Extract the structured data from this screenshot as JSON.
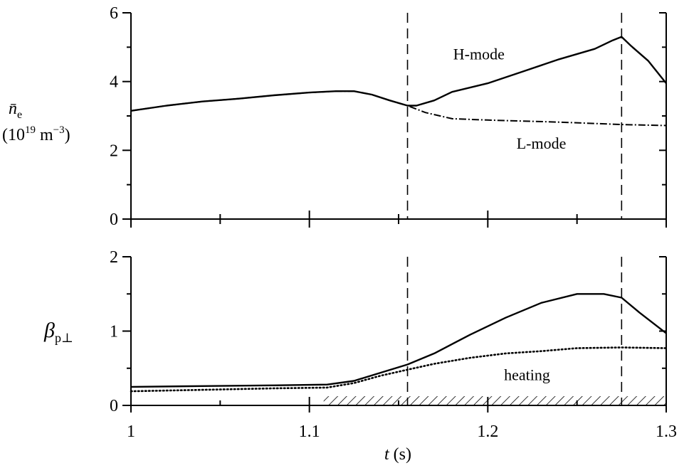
{
  "chart_data": [
    {
      "type": "line",
      "panel": "top",
      "ylabel_main": "n̄",
      "ylabel_sub": "e",
      "ylabel_unit_pre": "(10",
      "ylabel_unit_exp1": "19",
      "ylabel_unit_mid": " m",
      "ylabel_unit_exp2": "−3",
      "ylabel_unit_post": ")",
      "xlim": [
        1.0,
        1.3
      ],
      "ylim": [
        0,
        6
      ],
      "yticks": [
        "0",
        "2",
        "4",
        "6"
      ],
      "vlines": [
        1.155,
        1.275
      ],
      "annotations": [
        {
          "text": "H-mode",
          "x": 1.195,
          "y": 4.65
        },
        {
          "text": "L-mode",
          "x": 1.23,
          "y": 2.05
        }
      ],
      "series": [
        {
          "style": "solid",
          "x": [
            1.0,
            1.02,
            1.04,
            1.06,
            1.08,
            1.1,
            1.115,
            1.125,
            1.135,
            1.145,
            1.155,
            1.16,
            1.17,
            1.18,
            1.2,
            1.22,
            1.24,
            1.26,
            1.27,
            1.275,
            1.28,
            1.29,
            1.3
          ],
          "y": [
            3.15,
            3.3,
            3.42,
            3.5,
            3.6,
            3.68,
            3.72,
            3.72,
            3.62,
            3.45,
            3.3,
            3.3,
            3.45,
            3.7,
            3.95,
            4.3,
            4.65,
            4.95,
            5.2,
            5.3,
            5.05,
            4.6,
            3.95
          ]
        },
        {
          "style": "dash-dot",
          "x": [
            1.0,
            1.02,
            1.04,
            1.06,
            1.08,
            1.1,
            1.115,
            1.125,
            1.135,
            1.145,
            1.155,
            1.165,
            1.18,
            1.2,
            1.24,
            1.275,
            1.3
          ],
          "y": [
            3.15,
            3.3,
            3.42,
            3.5,
            3.6,
            3.68,
            3.72,
            3.72,
            3.62,
            3.45,
            3.3,
            3.1,
            2.92,
            2.88,
            2.82,
            2.75,
            2.72
          ]
        }
      ]
    },
    {
      "type": "line",
      "panel": "bottom",
      "ylabel_main": "β",
      "ylabel_sub": "p⊥",
      "xlabel_main": "t",
      "xlabel_unit": " (s)",
      "xlim": [
        1.0,
        1.3
      ],
      "ylim": [
        0,
        2
      ],
      "yticks": [
        "0",
        "1",
        "2"
      ],
      "xticks": [
        "1",
        "1.1",
        "1.2",
        "1.3"
      ],
      "xtick_values": [
        1.0,
        1.1,
        1.2,
        1.3
      ],
      "vlines": [
        1.155,
        1.275
      ],
      "heating": {
        "label": "heating",
        "x_start": 1.108,
        "x_end": 1.3,
        "label_x": 1.222,
        "label_y": 0.34
      },
      "series": [
        {
          "style": "solid",
          "x": [
            1.0,
            1.04,
            1.08,
            1.11,
            1.125,
            1.14,
            1.155,
            1.17,
            1.19,
            1.21,
            1.23,
            1.25,
            1.265,
            1.275,
            1.285,
            1.3
          ],
          "y": [
            0.25,
            0.26,
            0.27,
            0.28,
            0.33,
            0.44,
            0.55,
            0.7,
            0.95,
            1.18,
            1.38,
            1.5,
            1.5,
            1.45,
            1.25,
            0.97
          ]
        },
        {
          "style": "dotted",
          "x": [
            1.0,
            1.04,
            1.08,
            1.11,
            1.125,
            1.14,
            1.155,
            1.17,
            1.19,
            1.21,
            1.23,
            1.25,
            1.275,
            1.3
          ],
          "y": [
            0.19,
            0.21,
            0.23,
            0.24,
            0.3,
            0.4,
            0.48,
            0.56,
            0.64,
            0.7,
            0.73,
            0.77,
            0.78,
            0.77
          ]
        }
      ]
    }
  ]
}
